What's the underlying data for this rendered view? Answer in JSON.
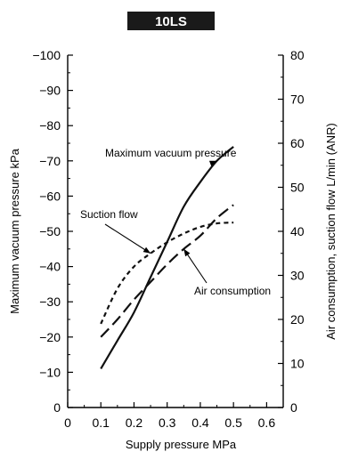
{
  "chart_data": {
    "type": "line",
    "title": "10LS",
    "xlabel": "Supply pressure MPa",
    "ylabel_left": "Maximum vacuum pressure kPa",
    "ylabel_right": "Air consumption, suction flow L/min (ANR)",
    "xlim": [
      0,
      0.65
    ],
    "ylim_left": [
      0,
      -100
    ],
    "ylim_right": [
      0,
      80
    ],
    "x_ticks": [
      "0",
      "0.1",
      "0.2",
      "0.3",
      "0.4",
      "0.5",
      "0.6"
    ],
    "y_left_ticks": [
      "0",
      "−10",
      "−20",
      "−30",
      "−40",
      "−50",
      "−60",
      "−70",
      "−80",
      "−90",
      "−100"
    ],
    "y_right_ticks": [
      "0",
      "10",
      "20",
      "30",
      "40",
      "50",
      "60",
      "70",
      "80"
    ],
    "grid": false,
    "series": [
      {
        "name": "Maximum vacuum pressure",
        "axis": "left",
        "style": "solid",
        "x": [
          0.1,
          0.15,
          0.2,
          0.25,
          0.3,
          0.35,
          0.4,
          0.45,
          0.5
        ],
        "y": [
          -11,
          -19,
          -27,
          -37,
          -47,
          -57,
          -64,
          -70,
          -74
        ]
      },
      {
        "name": "Suction flow",
        "axis": "right",
        "style": "short-dash",
        "x": [
          0.1,
          0.15,
          0.2,
          0.25,
          0.3,
          0.35,
          0.4,
          0.45,
          0.5
        ],
        "y": [
          19,
          27,
          32,
          35,
          37.5,
          39.5,
          41,
          41.8,
          42
        ]
      },
      {
        "name": "Air consumption",
        "axis": "right",
        "style": "long-dash",
        "x": [
          0.1,
          0.15,
          0.2,
          0.25,
          0.3,
          0.35,
          0.4,
          0.45,
          0.5
        ],
        "y": [
          16,
          20,
          24.5,
          28.5,
          32.5,
          36,
          39,
          43,
          46
        ]
      }
    ],
    "annotations": [
      {
        "text": "Maximum vacuum pressure",
        "series": "Maximum vacuum pressure"
      },
      {
        "text": "Suction flow",
        "series": "Suction flow"
      },
      {
        "text": "Air consumption",
        "series": "Air consumption"
      }
    ]
  }
}
